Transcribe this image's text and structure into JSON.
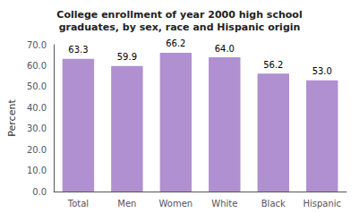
{
  "chart_data": {
    "type": "bar",
    "title": "College enrollment of year 2000 high school\ngraduates, by sex, race and Hispanic origin",
    "ylabel": "Percent",
    "categories": [
      "Total",
      "Men",
      "Women",
      "White",
      "Black",
      "Hispanic"
    ],
    "values": [
      63.3,
      59.9,
      66.2,
      64.0,
      56.2,
      53.0
    ],
    "value_labels": [
      "63.3",
      "59.9",
      "66.2",
      "64.0",
      "56.2",
      "53.0"
    ],
    "color": "#b090d0",
    "ylim": [
      0,
      70.0
    ],
    "yticks": [
      {
        "value": 0,
        "label": "0.0"
      },
      {
        "value": 10,
        "label": "10.0"
      },
      {
        "value": 20,
        "label": "20.0"
      },
      {
        "value": 30,
        "label": "30.0"
      },
      {
        "value": 40,
        "label": "40.0"
      },
      {
        "value": 50,
        "label": "50.0"
      },
      {
        "value": 60,
        "label": "60.0"
      },
      {
        "value": 70,
        "label": "70.0"
      }
    ],
    "data_labels": true,
    "grid": false
  }
}
